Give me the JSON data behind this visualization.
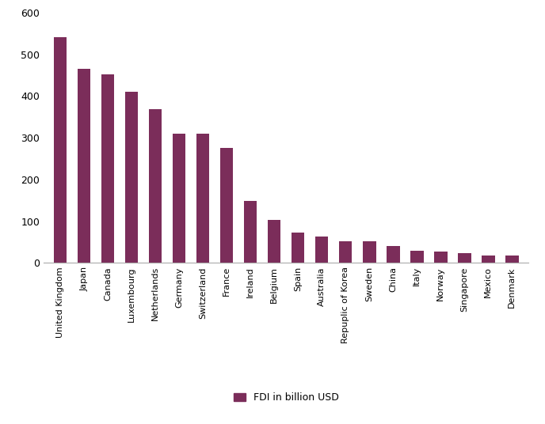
{
  "categories": [
    "United Kingdom",
    "Japan",
    "Canada",
    "Luxembourg",
    "Netherlands",
    "Germany",
    "Switzerland",
    "France",
    "Ireland",
    "Belgium",
    "Spain",
    "Australia",
    "Repuplic of Korea",
    "Sweden",
    "China",
    "Italy",
    "Norway",
    "Singapore",
    "Mexico",
    "Denmark"
  ],
  "values": [
    542,
    466,
    453,
    411,
    368,
    310,
    310,
    275,
    148,
    103,
    72,
    63,
    52,
    51,
    40,
    30,
    27,
    23,
    18,
    18
  ],
  "bar_color": "#7b2d5a",
  "legend_label": "FDI in billion USD",
  "ylim": [
    0,
    600
  ],
  "yticks": [
    0,
    100,
    200,
    300,
    400,
    500,
    600
  ],
  "background_color": "#ffffff",
  "bar_width": 0.55,
  "tick_fontsize": 9,
  "label_fontsize": 8,
  "legend_fontsize": 9,
  "figure_width": 6.88,
  "figure_height": 5.36,
  "dpi": 100
}
